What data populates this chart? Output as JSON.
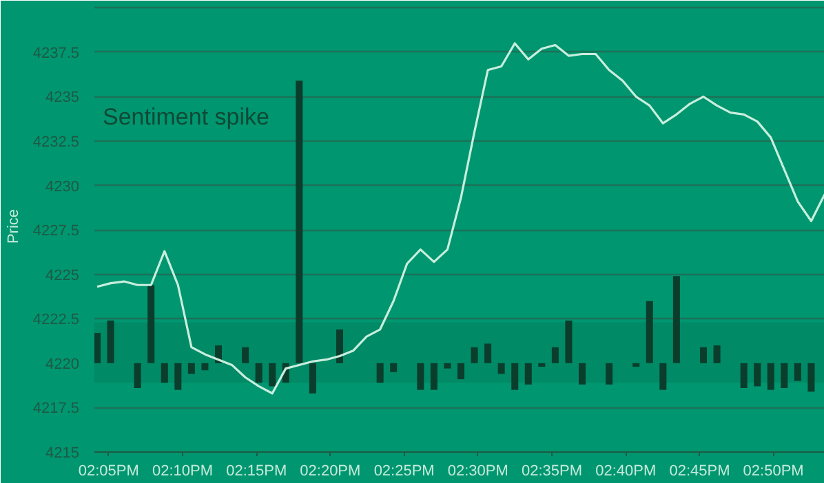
{
  "chart_data": {
    "type": "line",
    "ylabel": "Price",
    "annotations": [
      "Sentiment spike"
    ],
    "x": [
      14.0703,
      14.0855,
      14.1007,
      14.1159,
      14.1311,
      14.1463,
      14.1615,
      14.1767,
      14.1919,
      14.2071,
      14.2223,
      14.2375,
      14.2527,
      14.2679,
      14.2831,
      14.2983,
      14.3135,
      14.3287,
      14.3439,
      14.3591,
      14.3743,
      14.3895,
      14.4047,
      14.4199,
      14.4351,
      14.4503,
      14.4655,
      14.4807,
      14.4959,
      14.5111,
      14.5263,
      14.5415,
      14.5567,
      14.5719,
      14.5871,
      14.6023,
      14.6175,
      14.6327,
      14.6479,
      14.6631,
      14.6783,
      14.6935,
      14.7087,
      14.7239,
      14.7391,
      14.7543,
      14.7695,
      14.7847,
      14.7999,
      14.8151,
      14.8303,
      14.8455,
      14.8607,
      14.8759,
      14.8911
    ],
    "series": [
      {
        "type": "bar",
        "color": "#0b3d2c",
        "base": [
          4220,
          4220,
          null,
          4220,
          4220,
          4220,
          4220,
          4220,
          4220,
          4220,
          null,
          4220,
          4220,
          4220,
          4220,
          4220,
          4220,
          null,
          4220,
          null,
          null,
          4220,
          4220,
          null,
          4220,
          4220,
          4220,
          4220,
          4220,
          4220,
          4220,
          4220,
          4220,
          4220,
          4220,
          4220,
          4220,
          null,
          4220,
          null,
          4220,
          4220,
          4220,
          4220,
          null,
          4220,
          4220,
          null,
          4220,
          4220,
          4220,
          4220,
          4220,
          4220,
          null
        ],
        "values": [
          1.7,
          2.4,
          null,
          -1.4,
          4.4,
          -1.1,
          -1.5,
          -0.6,
          -0.4,
          1.0,
          null,
          0.9,
          -1.1,
          -1.3,
          -1.1,
          15.9,
          -1.7,
          null,
          1.9,
          null,
          null,
          -1.1,
          -0.5,
          null,
          -1.5,
          -1.5,
          -0.3,
          -0.9,
          0.9,
          1.1,
          -0.6,
          -1.5,
          -1.2,
          -0.2,
          0.9,
          2.4,
          -1.2,
          null,
          -1.2,
          null,
          -0.2,
          3.5,
          -1.5,
          4.9,
          null,
          0.9,
          1.0,
          null,
          -1.4,
          -1.3,
          -1.5,
          -1.4,
          -1.0,
          -1.6,
          null
        ]
      },
      {
        "color": "#c8eedd",
        "values": [
          4224.3,
          4224.5,
          4224.6,
          4224.4,
          4224.4,
          4226.3,
          4224.4,
          4220.9,
          4220.5,
          4220.2,
          4219.9,
          4219.2,
          4218.7,
          4218.3,
          4219.7,
          4219.9,
          4220.1,
          4220.2,
          4220.4,
          4220.7,
          4221.5,
          4221.9,
          4223.5,
          4225.6,
          4226.4,
          4225.7,
          4226.4,
          4229.3,
          4233.0,
          4236.5,
          4236.7,
          4238.0,
          4237.1,
          4237.7,
          4237.9,
          4237.3,
          4237.4,
          4237.4,
          4236.5,
          4235.9,
          4235.0,
          4234.5,
          4233.5,
          4234.0,
          4234.6,
          4235.0,
          4234.5,
          4234.1,
          4234.0,
          4233.6,
          4232.7,
          4230.9,
          4229.1,
          4228.0,
          4229.5
        ]
      }
    ],
    "bands": [
      {
        "axis": "y",
        "from": 4218.9,
        "to": 4222.3,
        "color": "#008a66"
      }
    ],
    "xlim": [
      14.0672,
      14.8911
    ],
    "xticks": [
      {
        "value": 14.0833,
        "label": "02:05PM"
      },
      {
        "value": 14.1667,
        "label": "02:10PM"
      },
      {
        "value": 14.25,
        "label": "02:15PM"
      },
      {
        "value": 14.3333,
        "label": "02:20PM"
      },
      {
        "value": 14.4167,
        "label": "02:25PM"
      },
      {
        "value": 14.5,
        "label": "02:30PM"
      },
      {
        "value": 14.5833,
        "label": "02:35PM"
      },
      {
        "value": 14.6667,
        "label": "02:40PM"
      },
      {
        "value": 14.75,
        "label": "02:45PM"
      },
      {
        "value": 14.8333,
        "label": "02:50PM"
      }
    ],
    "ylim": [
      4215,
      4240.4
    ],
    "yticks": [
      4215,
      4217.5,
      4220,
      4222.5,
      4225,
      4227.5,
      4230,
      4232.5,
      4235,
      4237.5,
      {
        "value": 4240,
        "label": null
      }
    ],
    "grid": "y"
  }
}
